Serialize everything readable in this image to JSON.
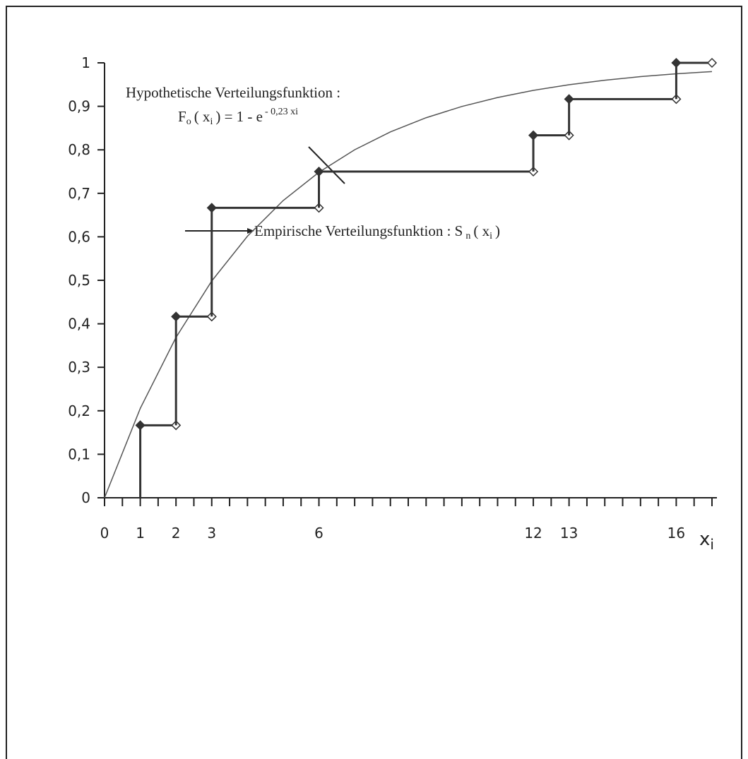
{
  "chart_data": {
    "type": "step",
    "xlim": [
      0,
      17
    ],
    "ylim": [
      0,
      1
    ],
    "xticks": [
      0,
      1,
      2,
      3,
      6,
      12,
      13,
      16
    ],
    "xminorticks": [
      0,
      0.5,
      1,
      1.5,
      2,
      2.5,
      3,
      3.5,
      4,
      4.5,
      5,
      5.5,
      6,
      6.5,
      7,
      7.5,
      8,
      8.5,
      9,
      9.5,
      10,
      10.5,
      11,
      11.5,
      12,
      12.5,
      13,
      13.5,
      14,
      14.5,
      15,
      15.5,
      16,
      16.5,
      17
    ],
    "yticks": [
      0,
      {
        "value": 0.1,
        "label": "0,1"
      },
      {
        "value": 0.2,
        "label": "0,2"
      },
      {
        "value": 0.3,
        "label": "0,3"
      },
      {
        "value": 0.4,
        "label": "0,4"
      },
      {
        "value": 0.5,
        "label": "0,5"
      },
      {
        "value": 0.6,
        "label": "0,6"
      },
      {
        "value": 0.7,
        "label": "0,7"
      },
      {
        "value": 0.8,
        "label": "0,8"
      },
      {
        "value": 0.9,
        "label": "0,9"
      },
      1
    ],
    "xlabel": {
      "main": "x",
      "sub": "i"
    },
    "empirical": {
      "color": "#333333",
      "x": [
        1,
        2,
        3,
        6,
        12,
        13,
        16
      ],
      "values": [
        0.1667,
        0.4167,
        0.6667,
        0.75,
        0.8333,
        0.9167,
        1
      ]
    },
    "hypothetical": {
      "color": "#555555",
      "x": [
        0,
        1,
        2,
        3,
        4,
        5,
        6,
        7,
        8,
        9,
        10,
        11,
        12,
        13,
        14,
        15,
        16,
        17
      ],
      "values": [
        0,
        0.2055,
        0.3687,
        0.4984,
        0.6015,
        0.6834,
        0.7484,
        0.8001,
        0.8412,
        0.8738,
        0.8997,
        0.9203,
        0.9367,
        0.9497,
        0.96,
        0.9683,
        0.9748,
        0.98
      ]
    },
    "annotations": [
      {
        "text": "Hypothetische Verteilungsfunktion :"
      },
      {
        "parts": [
          "F",
          "o",
          "( x",
          "i",
          ") = 1 - e",
          "- 0,23 xi"
        ]
      },
      {
        "parts": [
          "Empirische Verteilungsfunktion : S",
          "n",
          "( x",
          "i",
          ")"
        ]
      }
    ]
  }
}
